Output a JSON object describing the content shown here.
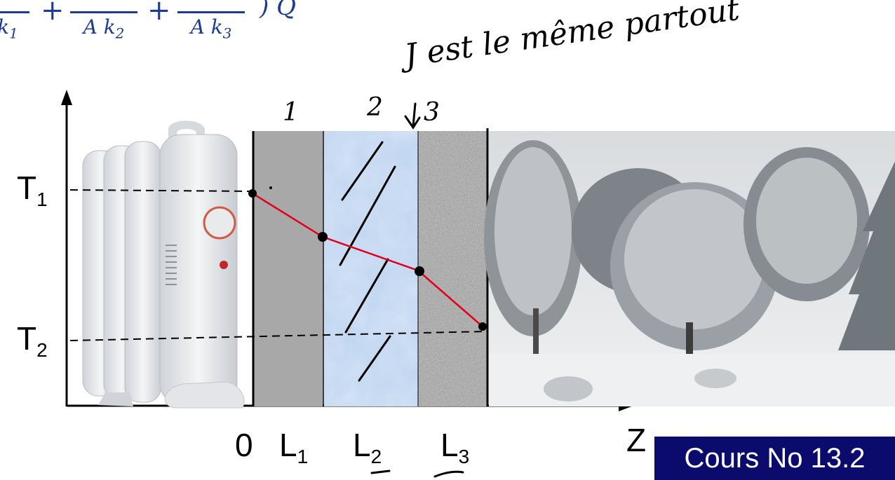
{
  "formula": {
    "first_denominator": "k",
    "first_denominator_sub": "1",
    "second_denominator": "A k",
    "second_denominator_sub": "2",
    "third_denominator": "A k",
    "third_denominator_sub": "3",
    "trailing": ") Q",
    "colors": {
      "text": "#1f3a93"
    }
  },
  "annotation": "J est le même partout",
  "layer_numbers": [
    "1",
    "2",
    "3"
  ],
  "labels": {
    "t1": "T",
    "t1_sub": "1",
    "t2": "T",
    "t2_sub": "2",
    "origin": "0",
    "l1": "L",
    "l1_sub": "1",
    "l2": "L",
    "l2_sub": "2",
    "l3": "L",
    "l3_sub": "3",
    "z_axis": "Z"
  },
  "badge": {
    "text": "Cours No 13.2",
    "colors": {
      "background": "#0b0b6e",
      "text": "#ffffff"
    }
  },
  "colors": {
    "layer_1": "#a8a8a8",
    "layer_2": "#b9d2ee",
    "layer_3": "#a9a9a9",
    "temperature_profile": "#e3001b",
    "snow_sky": "#e6e8ea"
  },
  "icons": [
    "radiator-image",
    "winter-landscape-image",
    "down-arrow-icon"
  ]
}
